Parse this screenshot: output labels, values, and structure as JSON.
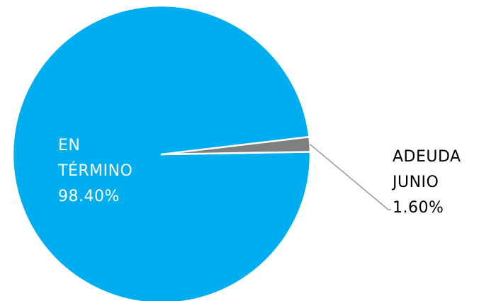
{
  "chart_data": {
    "type": "pie",
    "slices": [
      {
        "label_lines": [
          "EN",
          "TÉRMINO"
        ],
        "value": 98.4,
        "value_label": "98.40%",
        "color": "#00aeef",
        "label_color": "#ffffff"
      },
      {
        "label_lines": [
          "ADEUDA",
          "JUNIO"
        ],
        "value": 1.6,
        "value_label": "1.60%",
        "color": "#7f7f7f",
        "label_color": "#000000"
      }
    ],
    "legend": "none"
  }
}
